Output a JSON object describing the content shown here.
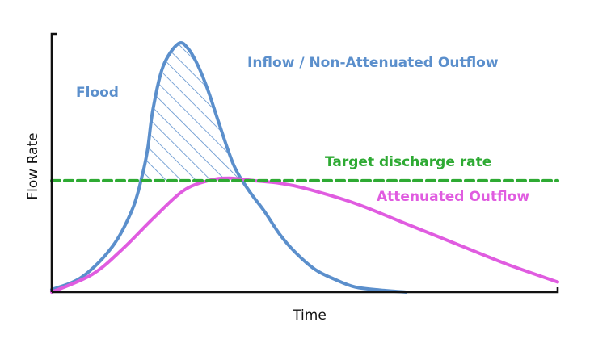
{
  "chart_data": {
    "type": "line",
    "title": "",
    "xlabel": "Time",
    "ylabel": "Flow Rate",
    "xlim": [
      0,
      100
    ],
    "ylim": [
      0,
      100
    ],
    "grid": false,
    "show_ticks": false,
    "series": [
      {
        "name": "Inflow / Non-Attenuated Outflow",
        "color": "#5b8fcc",
        "x": [
          0,
          6,
          12,
          16,
          18,
          19,
          20,
          22,
          25,
          27,
          29,
          31,
          33,
          36,
          39,
          42,
          45,
          48,
          52,
          56,
          60,
          65,
          70
        ],
        "y": [
          1,
          6,
          18,
          33,
          47,
          57,
          72,
          89,
          98,
          96,
          89,
          79,
          67,
          50,
          40,
          32,
          23,
          16,
          9,
          5,
          2,
          0.8,
          0
        ]
      },
      {
        "name": "Attenuated Outflow",
        "color": "#e05ce0",
        "x": [
          0,
          8,
          14,
          20,
          26,
          31,
          35,
          40,
          45,
          50,
          60,
          70,
          80,
          90,
          100
        ],
        "y": [
          0,
          7,
          17,
          29,
          40,
          44,
          45,
          44,
          43,
          41,
          35,
          27,
          19,
          11,
          4
        ]
      },
      {
        "name": "Target discharge rate",
        "color": "#2eaa33",
        "style": "dashed",
        "x": [
          0,
          100
        ],
        "y": [
          44,
          44
        ]
      }
    ],
    "shaded_region": {
      "label": "Flood",
      "between_series": "Inflow / Non-Attenuated Outflow",
      "above_y": 44,
      "x_range": [
        19.5,
        42.2
      ],
      "pattern": "diagonal-hatch",
      "color": "#5b8fcc"
    },
    "annotations": [
      {
        "id": "flood",
        "text": "Flood",
        "color": "#5b8fcc"
      },
      {
        "id": "inflow",
        "text": "Inflow / Non-Attenuated Outflow",
        "color": "#5b8fcc"
      },
      {
        "id": "target",
        "text": "Target discharge rate",
        "color": "#2eaa33"
      },
      {
        "id": "attenuated",
        "text": "Attenuated Outflow",
        "color": "#e05ce0"
      }
    ]
  }
}
